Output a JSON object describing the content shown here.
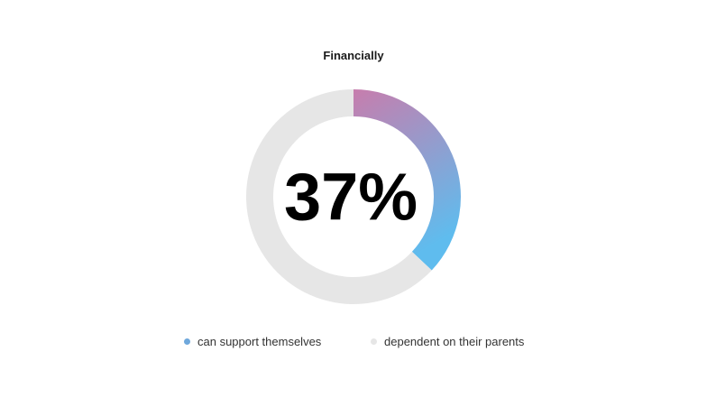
{
  "chart_data": {
    "type": "pie",
    "title": "Financially",
    "center_label": "37%",
    "slices": [
      {
        "name": "can support themselves",
        "value": 37,
        "color": "#6fa8dc"
      },
      {
        "name": "dependent on their parents",
        "value": 63,
        "color": "#e6e6e6"
      }
    ],
    "gradient": {
      "start": "#c77dad",
      "end": "#5fbcee"
    },
    "legend_position": "bottom"
  }
}
